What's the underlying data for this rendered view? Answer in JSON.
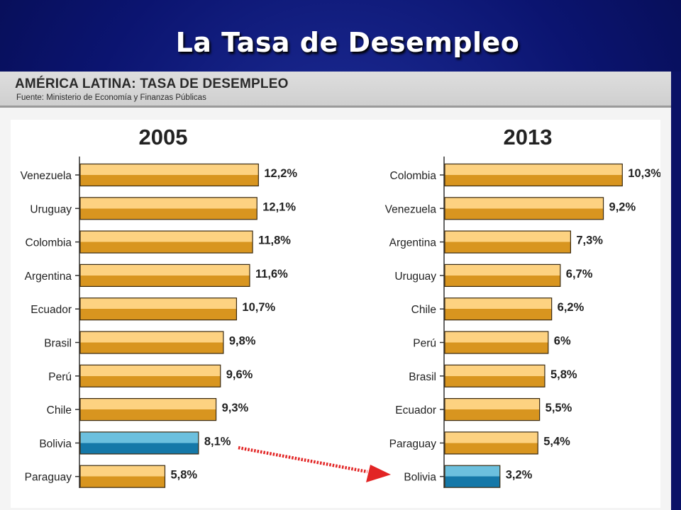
{
  "slide": {
    "title": "La Tasa de Desempleo"
  },
  "figure": {
    "heading": "AMÉRICA LATINA: TASA DE DESEMPLEO",
    "source": "Fuente: Ministerio de Economía y Finanzas Públicas"
  },
  "colors": {
    "bar_default_light": "#fdd281",
    "bar_default_dark": "#d8951f",
    "bar_highlight_light": "#6cc0de",
    "bar_highlight_dark": "#1578a8",
    "arrow": "#e22424"
  },
  "chart_data": [
    {
      "type": "bar",
      "orientation": "horizontal",
      "title": "2005",
      "categories": [
        "Venezuela",
        "Uruguay",
        "Colombia",
        "Argentina",
        "Ecuador",
        "Brasil",
        "Perú",
        "Chile",
        "Bolivia",
        "Paraguay"
      ],
      "values": [
        12.2,
        12.1,
        11.8,
        11.6,
        10.7,
        9.8,
        9.6,
        9.3,
        8.1,
        5.8
      ],
      "value_labels": [
        "12,2%",
        "12,1%",
        "11,8%",
        "11,6%",
        "10,7%",
        "9,8%",
        "9,6%",
        "9,3%",
        "8,1%",
        "5,8%"
      ],
      "highlight": "Bolivia",
      "unit": "%"
    },
    {
      "type": "bar",
      "orientation": "horizontal",
      "title": "2013",
      "categories": [
        "Colombia",
        "Venezuela",
        "Argentina",
        "Uruguay",
        "Chile",
        "Perú",
        "Brasil",
        "Ecuador",
        "Paraguay",
        "Bolivia"
      ],
      "values": [
        10.3,
        9.2,
        7.3,
        6.7,
        6.2,
        6.0,
        5.8,
        5.5,
        5.4,
        3.2
      ],
      "value_labels": [
        "10,3%",
        "9,2%",
        "7,3%",
        "6,7%",
        "6,2%",
        "6%",
        "5,8%",
        "5,5%",
        "5,4%",
        "3,2%"
      ],
      "highlight": "Bolivia",
      "unit": "%"
    }
  ]
}
